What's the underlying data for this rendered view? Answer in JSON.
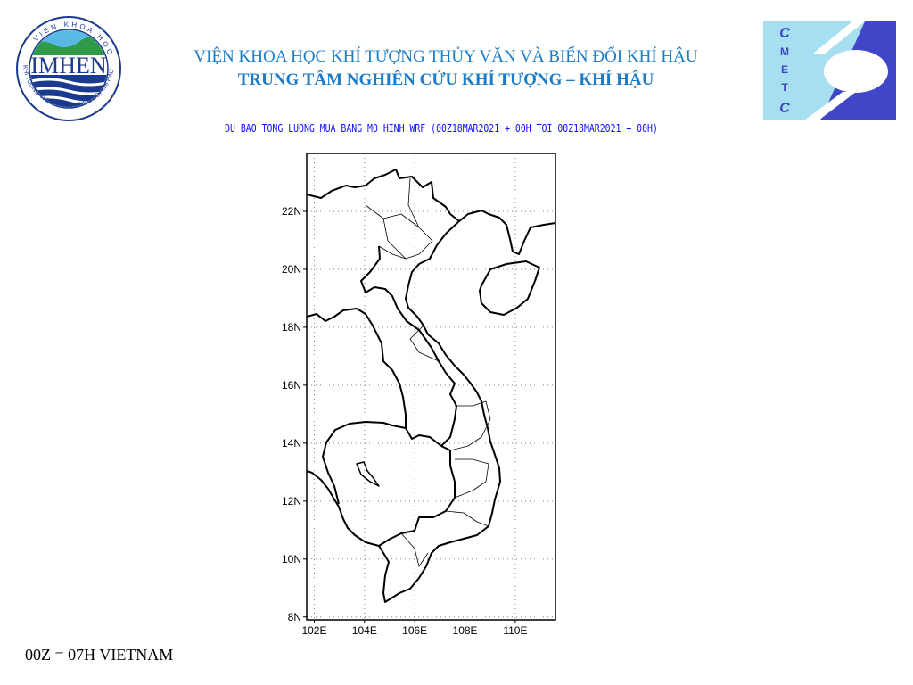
{
  "header": {
    "title_line1": "VIỆN KHOA HỌC KHÍ TƯỢNG THỦY VĂN VÀ BIẾN ĐỔI KHÍ HẬU",
    "title_line2": "TRUNG TÂM NGHIÊN CỨU KHÍ TƯỢNG – KHÍ HẬU",
    "left_logo": {
      "text": "IMHEN",
      "ring_text": "VIEN KHOA HOC KHI TUONG THUY VAN VA BIEN DOI KHI HAU",
      "color": "#1a3a8f"
    },
    "right_logo": {
      "text": "CMETC",
      "colors": [
        "#a6dff0",
        "#3f46c8"
      ]
    }
  },
  "map": {
    "title": "DU BAO TONG LUONG MUA BANG MO HINH WRF (00Z18MAR2021 + 00H TOI 00Z18MAR2021 + 00H)",
    "lat_ticks": [
      "8N",
      "10N",
      "12N",
      "14N",
      "16N",
      "18N",
      "20N",
      "22N"
    ],
    "lon_ticks": [
      "102E",
      "104E",
      "106E",
      "108E",
      "110E"
    ],
    "extent": {
      "lon": [
        101.7,
        111.6
      ],
      "lat": [
        7.9,
        24.0
      ]
    },
    "grid": "dotted"
  },
  "footnote": "00Z = 07H VIETNAM"
}
